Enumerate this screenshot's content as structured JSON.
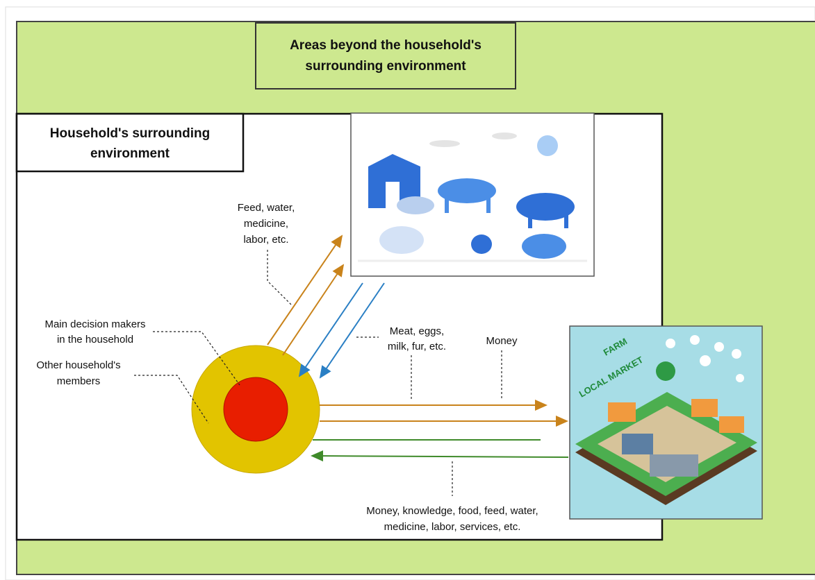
{
  "title_box": {
    "lines": [
      "Areas beyond the household's",
      "surrounding environment"
    ]
  },
  "household_box": {
    "lines": [
      "Household's surrounding",
      "environment"
    ]
  },
  "labels": [
    {
      "lines": [
        "Feed, water,",
        "medicine,",
        "labor, etc."
      ]
    },
    {
      "lines": [
        "Main decision makers",
        "in the household"
      ]
    },
    {
      "lines": [
        "Other household's",
        "members"
      ]
    },
    {
      "lines": [
        "Meat, eggs,",
        "milk, fur, etc."
      ]
    },
    {
      "lines": [
        "Money"
      ]
    },
    {
      "lines": [
        "Money, knowledge, food, feed, water,",
        "medicine, labor, services, etc."
      ]
    }
  ],
  "market_sign": [
    "FARM",
    "LOCAL MARKET"
  ]
}
